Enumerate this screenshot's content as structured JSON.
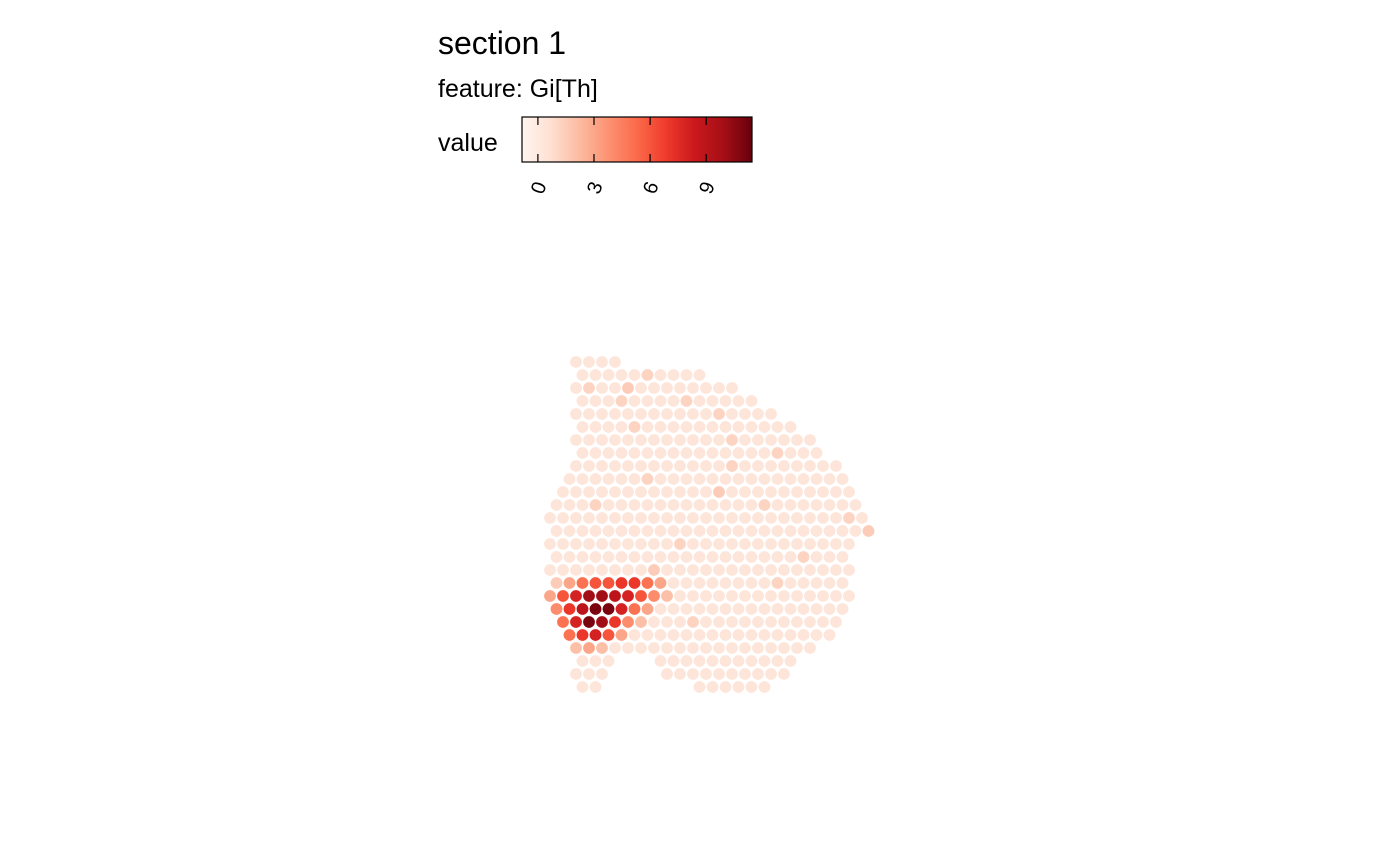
{
  "chart_data": {
    "type": "spatial",
    "title": "section 1",
    "subtitle": "feature:  Gi[Th]",
    "legend_title": "value",
    "colormap": [
      "#fff5f0",
      "#fee0d2",
      "#fcbba1",
      "#fc9272",
      "#fb6a4a",
      "#ef3b2c",
      "#cb181d",
      "#a50f15",
      "#67000d"
    ],
    "clim": [
      -0.85,
      11.45
    ],
    "cticks": [
      0,
      3,
      6,
      9
    ],
    "values": [
      [
        null,
        null,
        0.3,
        0.3,
        0.3,
        0.3,
        null,
        null,
        null,
        null,
        null,
        null,
        null,
        null,
        null,
        null,
        null,
        null,
        null,
        null,
        null,
        null,
        null,
        null,
        null,
        null
      ],
      [
        null,
        null,
        0.3,
        0.3,
        0.3,
        0.3,
        0.3,
        1.2,
        0.3,
        0.3,
        0.3,
        0.3,
        null,
        null,
        null,
        null,
        null,
        null,
        null,
        null,
        null,
        null,
        null,
        null,
        null,
        null
      ],
      [
        null,
        null,
        0.3,
        1.2,
        0.3,
        0.3,
        1.5,
        0.3,
        0.3,
        0.3,
        0.3,
        0.3,
        0.3,
        0.3,
        0.3,
        null,
        null,
        null,
        null,
        null,
        null,
        null,
        null,
        null,
        null,
        null
      ],
      [
        null,
        null,
        0.3,
        0.3,
        0.3,
        1.2,
        0.3,
        0.3,
        0.3,
        0.3,
        1.2,
        0.3,
        0.3,
        0.3,
        0.3,
        0.3,
        null,
        null,
        null,
        null,
        null,
        null,
        null,
        null,
        null,
        null
      ],
      [
        null,
        null,
        0.3,
        0.3,
        0.3,
        0.3,
        0.3,
        0.3,
        0.3,
        0.3,
        0.3,
        0.3,
        0.3,
        1.2,
        0.3,
        0.3,
        0.3,
        0.3,
        null,
        null,
        null,
        null,
        null,
        null,
        null,
        null
      ],
      [
        null,
        null,
        0.3,
        0.3,
        0.3,
        0.3,
        1.2,
        0.3,
        0.3,
        0.3,
        0.3,
        0.3,
        0.3,
        0.3,
        0.3,
        0.3,
        0.3,
        0.3,
        0.3,
        null,
        null,
        null,
        null,
        null,
        null,
        null
      ],
      [
        null,
        null,
        0.3,
        0.3,
        0.3,
        0.3,
        0.3,
        0.3,
        0.3,
        0.3,
        0.3,
        0.3,
        0.3,
        0.3,
        1.2,
        0.3,
        0.3,
        0.3,
        0.3,
        0.3,
        0.3,
        null,
        null,
        null,
        null,
        null
      ],
      [
        null,
        null,
        0.3,
        0.3,
        0.3,
        0.3,
        0.3,
        0.3,
        0.3,
        0.3,
        0.3,
        0.3,
        0.3,
        0.3,
        0.3,
        0.3,
        0.3,
        1.2,
        0.3,
        0.3,
        0.3,
        null,
        null,
        null,
        null,
        null
      ],
      [
        null,
        null,
        0.3,
        0.3,
        0.3,
        0.3,
        0.3,
        0.3,
        0.3,
        0.3,
        0.3,
        0.3,
        0.3,
        0.3,
        1.2,
        0.3,
        0.3,
        0.3,
        0.3,
        0.3,
        0.3,
        0.3,
        0.3,
        null,
        null,
        null
      ],
      [
        null,
        0.3,
        0.3,
        0.3,
        0.3,
        0.3,
        0.3,
        1.2,
        0.3,
        0.3,
        0.3,
        0.3,
        0.3,
        0.3,
        0.3,
        0.3,
        0.3,
        0.3,
        0.3,
        0.3,
        0.3,
        0.3,
        0.3,
        null,
        null,
        null
      ],
      [
        null,
        0.3,
        0.3,
        0.3,
        0.3,
        0.3,
        0.3,
        0.3,
        0.3,
        0.3,
        0.3,
        0.3,
        0.3,
        1.5,
        0.3,
        0.3,
        0.3,
        0.3,
        0.3,
        0.3,
        0.3,
        0.3,
        0.3,
        0.3,
        null,
        null
      ],
      [
        0.3,
        0.3,
        0.3,
        1.2,
        0.3,
        0.3,
        0.3,
        0.3,
        0.3,
        0.3,
        0.3,
        0.3,
        0.3,
        0.3,
        0.3,
        0.3,
        1.2,
        0.3,
        0.3,
        0.3,
        0.3,
        0.3,
        0.3,
        0.3,
        null,
        null
      ],
      [
        0.3,
        0.3,
        0.3,
        0.3,
        0.3,
        0.3,
        0.3,
        0.3,
        0.3,
        0.3,
        0.3,
        0.3,
        0.3,
        0.3,
        0.3,
        0.3,
        0.3,
        0.3,
        0.3,
        0.3,
        0.3,
        0.3,
        0.3,
        1.2,
        0.3,
        null
      ],
      [
        0.3,
        0.3,
        0.3,
        0.3,
        0.3,
        0.3,
        0.3,
        0.3,
        0.3,
        0.3,
        0.3,
        0.3,
        0.3,
        0.3,
        0.3,
        0.3,
        0.3,
        0.3,
        0.3,
        0.3,
        0.3,
        0.3,
        0.3,
        0.3,
        1.5,
        null
      ],
      [
        0.3,
        0.3,
        0.3,
        0.3,
        0.3,
        0.3,
        0.3,
        0.3,
        0.3,
        0.3,
        1.2,
        0.3,
        0.3,
        0.3,
        0.3,
        0.3,
        0.3,
        0.3,
        0.3,
        0.3,
        0.3,
        0.3,
        0.3,
        0.3,
        null,
        null
      ],
      [
        0.3,
        0.3,
        0.3,
        0.3,
        0.3,
        0.3,
        0.3,
        0.3,
        0.3,
        0.3,
        0.3,
        0.3,
        0.3,
        0.3,
        0.3,
        0.3,
        0.3,
        0.3,
        0.3,
        1.2,
        0.3,
        0.3,
        0.3,
        null,
        null,
        null
      ],
      [
        0.3,
        0.3,
        0.3,
        0.3,
        0.3,
        0.3,
        0.3,
        0.3,
        1.5,
        0.3,
        0.3,
        0.3,
        0.3,
        0.3,
        0.3,
        0.3,
        0.3,
        0.3,
        0.3,
        0.3,
        0.3,
        0.3,
        0.3,
        0.3,
        null,
        null
      ],
      [
        1.5,
        3,
        5,
        6,
        6,
        7,
        7,
        5,
        3,
        0.3,
        0.3,
        0.3,
        0.3,
        0.3,
        0.3,
        0.3,
        0.3,
        1.2,
        0.3,
        0.3,
        0.3,
        0.3,
        0.3,
        null,
        null,
        null
      ],
      [
        3,
        6,
        8,
        10,
        10,
        9,
        8,
        6,
        4,
        2,
        0.3,
        0.3,
        0.3,
        0.3,
        0.3,
        0.3,
        0.3,
        0.3,
        0.3,
        0.3,
        0.3,
        0.3,
        0.3,
        0.3,
        null,
        null
      ],
      [
        4,
        7,
        9,
        11,
        11,
        8,
        5,
        3,
        0.3,
        0.3,
        0.3,
        0.3,
        0.3,
        0.3,
        0.3,
        0.3,
        0.3,
        0.3,
        0.3,
        0.3,
        0.3,
        0.3,
        0.3,
        null,
        null,
        null
      ],
      [
        null,
        5,
        8,
        11,
        10,
        7,
        4,
        2,
        0.3,
        0.3,
        0.3,
        1.2,
        0.3,
        0.3,
        0.3,
        0.3,
        0.3,
        0.3,
        0.3,
        0.3,
        0.3,
        0.3,
        0.3,
        null,
        null,
        null
      ],
      [
        null,
        5,
        7,
        8,
        6,
        3,
        0.3,
        0.3,
        0.3,
        0.3,
        0.3,
        0.3,
        0.3,
        0.3,
        0.3,
        0.3,
        0.3,
        0.3,
        0.3,
        0.3,
        0.3,
        0.3,
        null,
        null,
        null,
        null
      ],
      [
        null,
        null,
        2,
        3,
        2,
        0.3,
        0.3,
        0.3,
        0.3,
        0.3,
        0.3,
        0.3,
        0.3,
        0.3,
        0.3,
        0.3,
        0.3,
        0.3,
        0.3,
        0.3,
        0.3,
        null,
        null,
        null,
        null,
        null
      ],
      [
        null,
        null,
        0.3,
        0.3,
        0.3,
        null,
        null,
        null,
        0.3,
        0.3,
        0.3,
        0.3,
        0.3,
        0.3,
        0.3,
        0.3,
        0.3,
        0.3,
        0.3,
        null,
        null,
        null,
        null,
        null,
        null,
        null
      ],
      [
        null,
        null,
        0.3,
        0.3,
        0.3,
        null,
        null,
        null,
        null,
        0.3,
        0.3,
        0.3,
        0.3,
        0.3,
        0.3,
        0.3,
        0.3,
        0.3,
        0.3,
        null,
        null,
        null,
        null,
        null,
        null,
        null
      ],
      [
        null,
        null,
        0.3,
        0.3,
        null,
        null,
        null,
        null,
        null,
        null,
        null,
        0.3,
        0.3,
        0.3,
        0.3,
        0.3,
        0.3,
        null,
        null,
        null,
        null,
        null,
        null,
        null,
        null,
        null
      ]
    ]
  }
}
